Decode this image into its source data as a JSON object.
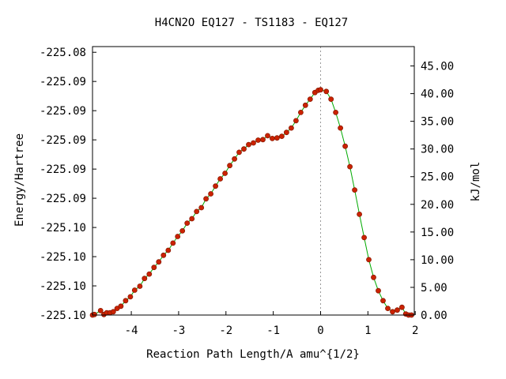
{
  "chart_data": {
    "type": "line",
    "title": "H4CN2O   EQ127 - TS1183 - EQ127",
    "xlabel": "Reaction Path Length/A amu^{1/2}",
    "ylabel_left": "Energy/Hartree",
    "ylabel_right": "kJ/mol",
    "xlim": [
      -4.82,
      1.98
    ],
    "ylim_right": [
      0,
      48.5
    ],
    "x_ticks": [
      -4,
      -3,
      -2,
      -1,
      0,
      1,
      2
    ],
    "x_tick_labels": [
      "-4",
      "-3",
      "-2",
      "-1",
      "0",
      "1",
      "2"
    ],
    "left_ticks_kj": [
      0.0,
      5.27,
      10.55,
      15.82,
      21.1,
      26.37,
      31.65,
      36.92,
      42.2,
      47.47
    ],
    "left_tick_labels": [
      "-225.10",
      "-225.10",
      "-225.10",
      "-225.10",
      "-225.09",
      "-225.09",
      "-225.09",
      "-225.09",
      "-225.09",
      "-225.08"
    ],
    "right_ticks": [
      0,
      5,
      10,
      15,
      20,
      25,
      30,
      35,
      40,
      45
    ],
    "right_tick_labels": [
      "0.00",
      "5.00",
      "10.00",
      "15.00",
      "20.00",
      "25.00",
      "30.00",
      "35.00",
      "40.00",
      "45.00"
    ],
    "ts_x": 0,
    "colors": {
      "points": "#cc2200",
      "points_edge": "#8b1a00",
      "line": "#00aa00",
      "ts_line": "#999999",
      "axis": "#000000"
    },
    "series": [
      {
        "points": [
          [
            -4.82,
            0.0
          ],
          [
            -4.78,
            0.1
          ],
          [
            -4.65,
            0.8
          ],
          [
            -4.58,
            0.1
          ],
          [
            -4.52,
            0.4
          ],
          [
            -4.45,
            0.4
          ],
          [
            -4.38,
            0.6
          ],
          [
            -4.3,
            1.2
          ],
          [
            -4.22,
            1.6
          ],
          [
            -4.12,
            2.6
          ],
          [
            -4.02,
            3.3
          ],
          [
            -3.93,
            4.5
          ],
          [
            -3.82,
            5.2
          ],
          [
            -3.72,
            6.6
          ],
          [
            -3.62,
            7.4
          ],
          [
            -3.52,
            8.6
          ],
          [
            -3.42,
            9.6
          ],
          [
            -3.32,
            10.8
          ],
          [
            -3.22,
            11.7
          ],
          [
            -3.12,
            13.0
          ],
          [
            -3.02,
            14.2
          ],
          [
            -2.92,
            15.2
          ],
          [
            -2.82,
            16.6
          ],
          [
            -2.72,
            17.4
          ],
          [
            -2.62,
            18.7
          ],
          [
            -2.52,
            19.4
          ],
          [
            -2.42,
            21.0
          ],
          [
            -2.32,
            21.9
          ],
          [
            -2.22,
            23.3
          ],
          [
            -2.12,
            24.6
          ],
          [
            -2.02,
            25.6
          ],
          [
            -1.92,
            27.0
          ],
          [
            -1.82,
            28.2
          ],
          [
            -1.72,
            29.4
          ],
          [
            -1.62,
            30.0
          ],
          [
            -1.52,
            30.8
          ],
          [
            -1.42,
            31.1
          ],
          [
            -1.32,
            31.6
          ],
          [
            -1.22,
            31.7
          ],
          [
            -1.12,
            32.4
          ],
          [
            -1.02,
            31.9
          ],
          [
            -0.92,
            32.0
          ],
          [
            -0.82,
            32.3
          ],
          [
            -0.72,
            33.0
          ],
          [
            -0.62,
            33.8
          ],
          [
            -0.52,
            35.1
          ],
          [
            -0.42,
            36.6
          ],
          [
            -0.32,
            37.9
          ],
          [
            -0.22,
            39.0
          ],
          [
            -0.12,
            40.2
          ],
          [
            -0.05,
            40.6
          ],
          [
            0.0,
            40.7
          ],
          [
            0.12,
            40.4
          ],
          [
            0.22,
            39.0
          ],
          [
            0.32,
            36.6
          ],
          [
            0.42,
            33.8
          ],
          [
            0.52,
            30.5
          ],
          [
            0.62,
            26.8
          ],
          [
            0.72,
            22.6
          ],
          [
            0.82,
            18.2
          ],
          [
            0.92,
            14.0
          ],
          [
            1.02,
            10.0
          ],
          [
            1.12,
            6.8
          ],
          [
            1.22,
            4.4
          ],
          [
            1.32,
            2.6
          ],
          [
            1.42,
            1.2
          ],
          [
            1.52,
            0.6
          ],
          [
            1.62,
            0.9
          ],
          [
            1.72,
            1.4
          ],
          [
            1.8,
            0.2
          ],
          [
            1.86,
            0.0
          ],
          [
            1.92,
            0.0
          ]
        ]
      }
    ]
  }
}
